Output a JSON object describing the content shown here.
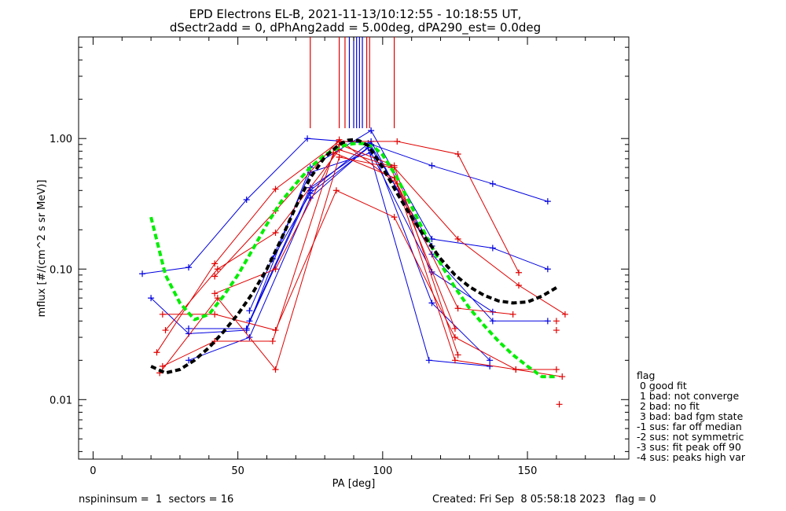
{
  "chart_data": {
    "type": "line",
    "title_line1": "EPD Electrons EL-B, 2021-11-13/10:12:55 - 10:18:55 UT,",
    "title_line2": "dSectr2add = 0, dPhAng2add = 5.00deg, dPA290_est=    0.0deg",
    "xlabel": "PA [deg]",
    "ylabel": "mflux [#/(cm^2 s sr MeV)]",
    "xlim": [
      -5,
      185
    ],
    "ylim": [
      0.0035,
      6
    ],
    "yscale": "log",
    "x_ticks": [
      0,
      50,
      100,
      150
    ],
    "x_tick_labels": [
      "0",
      "50",
      "100",
      "150"
    ],
    "y_ticks": [
      0.01,
      0.1,
      1
    ],
    "y_tick_labels": [
      "0.01",
      "0.10",
      "1.00"
    ],
    "grid": false,
    "colors": {
      "red": "#e00000",
      "blue": "#0000e0",
      "green": "#00ee00",
      "black": "#000000"
    },
    "vertical_lines": [
      {
        "x": 75,
        "color": "red"
      },
      {
        "x": 85,
        "color": "red"
      },
      {
        "x": 87,
        "color": "red"
      },
      {
        "x": 88.5,
        "color": "blue"
      },
      {
        "x": 90,
        "color": "blue"
      },
      {
        "x": 91,
        "color": "blue"
      },
      {
        "x": 92,
        "color": "blue"
      },
      {
        "x": 93,
        "color": "blue"
      },
      {
        "x": 94.5,
        "color": "red"
      },
      {
        "x": 95.5,
        "color": "red"
      },
      {
        "x": 104,
        "color": "red"
      }
    ],
    "vertical_lines_y_bottom": 1.2,
    "series": [
      {
        "color": "blue",
        "x": [
          17,
          33,
          53,
          74,
          95,
          117,
          138,
          157
        ],
        "y": [
          0.092,
          0.103,
          0.34,
          1.0,
          0.92,
          0.62,
          0.45,
          0.33
        ]
      },
      {
        "color": "blue",
        "x": [
          20,
          33,
          53,
          75,
          96,
          117,
          138,
          157
        ],
        "y": [
          0.06,
          0.032,
          0.034,
          0.6,
          1.15,
          0.17,
          0.145,
          0.1
        ]
      },
      {
        "color": "blue",
        "x": [
          33,
          53,
          75,
          96,
          117,
          138,
          157
        ],
        "y": [
          0.035,
          0.035,
          0.4,
          0.95,
          0.13,
          0.04,
          0.04
        ]
      },
      {
        "color": "blue",
        "x": [
          33,
          54,
          75,
          96,
          117,
          137
        ],
        "y": [
          0.02,
          0.03,
          0.35,
          0.9,
          0.055,
          0.02
        ]
      },
      {
        "color": "blue",
        "x": [
          54,
          75,
          95,
          116,
          137
        ],
        "y": [
          0.04,
          0.42,
          0.85,
          0.02,
          0.018
        ]
      },
      {
        "color": "blue",
        "x": [
          54,
          75,
          96,
          117,
          138
        ],
        "y": [
          0.048,
          0.55,
          0.78,
          0.095,
          0.047
        ]
      },
      {
        "color": "blue",
        "x": [
          62,
          75,
          96,
          117
        ],
        "y": [
          0.12,
          0.38,
          0.88,
          0.15
        ]
      },
      {
        "color": "red",
        "x": [
          22,
          42,
          63,
          85,
          105,
          126,
          147
        ],
        "y": [
          0.023,
          0.11,
          0.41,
          0.95,
          0.95,
          0.76,
          0.094
        ]
      },
      {
        "color": "red",
        "x": [
          25,
          43,
          63,
          85,
          104,
          126,
          147,
          163
        ],
        "y": [
          0.034,
          0.1,
          0.19,
          0.82,
          0.6,
          0.17,
          0.075,
          0.045
        ]
      },
      {
        "color": "red",
        "x": [
          24,
          42,
          63,
          84,
          104,
          125,
          146,
          160
        ],
        "y": [
          0.045,
          0.045,
          0.034,
          0.4,
          0.25,
          0.03,
          0.017,
          0.017
        ]
      },
      {
        "color": "red",
        "x": [
          24,
          42,
          62,
          83,
          104,
          126,
          145
        ],
        "y": [
          0.018,
          0.028,
          0.028,
          0.78,
          0.5,
          0.05,
          0.045
        ]
      },
      {
        "color": "red",
        "x": [
          23,
          43,
          63,
          85,
          103,
          125,
          146,
          162
        ],
        "y": [
          0.016,
          0.06,
          0.017,
          0.72,
          0.6,
          0.02,
          0.017,
          0.015
        ]
      },
      {
        "color": "red",
        "x": [
          42,
          63,
          85,
          104,
          126
        ],
        "y": [
          0.065,
          0.1,
          0.9,
          0.62,
          0.022
        ]
      },
      {
        "color": "red",
        "x": [
          42,
          63,
          85,
          105,
          125
        ],
        "y": [
          0.088,
          0.28,
          0.98,
          0.45,
          0.035
        ]
      }
    ],
    "scatter_points": [
      {
        "color": "red",
        "x": 160,
        "y": 0.04
      },
      {
        "color": "red",
        "x": 160,
        "y": 0.034
      },
      {
        "color": "red",
        "x": 161,
        "y": 0.0092
      }
    ],
    "fit_curves": [
      {
        "color": "green",
        "style": "dashed",
        "x": [
          20,
          25,
          30,
          35,
          40,
          45,
          50,
          55,
          60,
          65,
          70,
          75,
          80,
          85,
          88,
          91,
          94,
          97,
          100,
          105,
          110,
          115,
          120,
          125,
          130,
          135,
          140,
          145,
          150,
          155,
          160
        ],
        "y": [
          0.25,
          0.09,
          0.055,
          0.041,
          0.045,
          0.062,
          0.09,
          0.14,
          0.22,
          0.33,
          0.45,
          0.6,
          0.75,
          0.86,
          0.9,
          0.92,
          0.91,
          0.86,
          0.75,
          0.5,
          0.3,
          0.18,
          0.11,
          0.072,
          0.05,
          0.037,
          0.028,
          0.022,
          0.018,
          0.015,
          0.015
        ]
      },
      {
        "color": "black",
        "style": "dashed",
        "x": [
          20,
          25,
          30,
          35,
          40,
          45,
          50,
          55,
          60,
          65,
          70,
          75,
          80,
          85,
          88,
          90,
          92,
          95,
          100,
          105,
          110,
          115,
          120,
          125,
          130,
          135,
          140,
          145,
          150,
          155,
          160
        ],
        "y": [
          0.018,
          0.016,
          0.017,
          0.02,
          0.025,
          0.033,
          0.045,
          0.065,
          0.1,
          0.17,
          0.3,
          0.5,
          0.72,
          0.9,
          0.97,
          0.98,
          0.96,
          0.88,
          0.6,
          0.38,
          0.25,
          0.17,
          0.12,
          0.09,
          0.073,
          0.063,
          0.057,
          0.055,
          0.056,
          0.062,
          0.072
        ]
      }
    ]
  },
  "legend": {
    "heading": "flag",
    "items": [
      " 0 good fit",
      " 1 bad: not converge",
      " 2 bad: no fit",
      " 3 bad: bad fgm state",
      "-1 sus: far off median",
      "-2 sus: not symmetric",
      "-3 sus: fit peak off 90",
      "-4 sus: peaks high var"
    ]
  },
  "footer": {
    "left": "nspininsum =  1  sectors = 16",
    "right": "Created: Fri Sep  8 05:58:18 2023   flag = 0"
  }
}
